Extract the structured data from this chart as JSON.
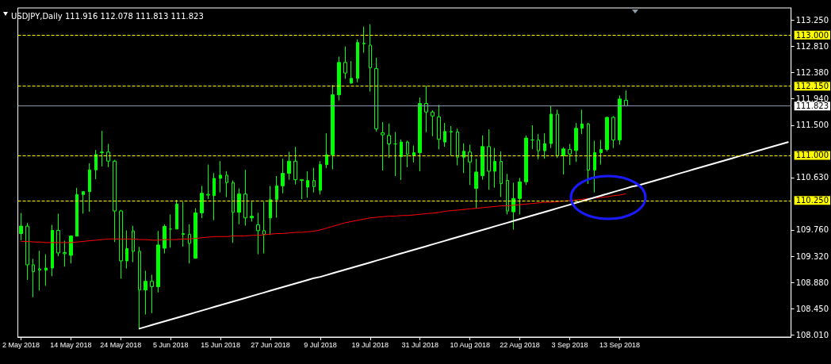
{
  "chart_data": {
    "type": "candlestick",
    "title": "USDJPY,Daily 111.916 112.078 111.813 111.823",
    "color": "#00ff00",
    "categories": [
      "2 May 2018",
      null,
      null,
      null,
      null,
      null,
      null,
      null,
      "14 May 2018",
      null,
      null,
      null,
      null,
      null,
      null,
      null,
      "24 May 2018",
      null,
      null,
      null,
      null,
      null,
      null,
      null,
      "5 Jun 2018",
      null,
      null,
      null,
      null,
      null,
      null,
      null,
      "15 Jun 2018",
      null,
      null,
      null,
      null,
      null,
      null,
      null,
      "27 Jun 2018",
      null,
      null,
      null,
      null,
      null,
      null,
      null,
      "9 Jul 2018",
      null,
      null,
      null,
      null,
      null,
      null,
      null,
      "19 Jul 2018",
      null,
      null,
      null,
      null,
      null,
      null,
      null,
      "31 Jul 2018",
      null,
      null,
      null,
      null,
      null,
      null,
      null,
      "10 Aug 2018",
      null,
      null,
      null,
      null,
      null,
      null,
      null,
      "22 Aug 2018",
      null,
      null,
      null,
      null,
      null,
      null,
      null,
      "3 Sep 2018",
      null,
      null,
      null,
      null,
      null,
      null,
      null,
      "13 Sep 2018",
      null,
      null,
      null,
      null,
      null,
      null,
      null,
      null,
      null,
      null,
      null,
      null,
      null,
      null,
      null,
      null,
      null,
      null,
      null,
      null,
      null,
      null,
      null,
      null,
      null,
      null,
      null
    ],
    "ohlc": [
      [
        109.7,
        110.04,
        109.59,
        109.824
      ],
      [
        109.824,
        109.876,
        108.928,
        109.18
      ],
      [
        109.18,
        109.281,
        108.641,
        109.069
      ],
      [
        109.113,
        109.413,
        108.752,
        109.091
      ],
      [
        109.091,
        109.356,
        108.831,
        109.127
      ],
      [
        109.127,
        109.846,
        108.99,
        109.753
      ],
      [
        109.753,
        110.031,
        109.325,
        109.378
      ],
      [
        109.383,
        109.581,
        109.149,
        109.365
      ],
      [
        109.338,
        109.669,
        109.202,
        109.66
      ],
      [
        109.656,
        110.459,
        109.656,
        110.348
      ],
      [
        110.348,
        110.406,
        110.031,
        110.397
      ],
      [
        110.397,
        110.869,
        110.062,
        110.759
      ],
      [
        110.759,
        111.089,
        110.604,
        111.014
      ],
      [
        111.045,
        111.407,
        110.816,
        111.054
      ],
      [
        111.054,
        111.191,
        110.803,
        110.904
      ],
      [
        110.904,
        110.926,
        109.559,
        110.075
      ],
      [
        110.075,
        110.093,
        108.95,
        109.246
      ],
      [
        109.246,
        109.753,
        109.118,
        109.449
      ],
      [
        109.744,
        109.828,
        109.224,
        109.405
      ],
      [
        109.405,
        109.48,
        108.112,
        108.761
      ],
      [
        108.761,
        109.083,
        108.355,
        108.906
      ],
      [
        108.906,
        109.016,
        108.377,
        108.818
      ],
      [
        108.818,
        109.744,
        108.721,
        109.51
      ],
      [
        109.457,
        109.854,
        109.369,
        109.819
      ],
      [
        109.775,
        110.018,
        109.466,
        109.775
      ],
      [
        109.775,
        110.26,
        109.775,
        110.19
      ],
      [
        109.7,
        110.229,
        109.48,
        109.687
      ],
      [
        109.687,
        109.854,
        109.202,
        109.537
      ],
      [
        109.29,
        110.119,
        109.281,
        110.044
      ],
      [
        110.044,
        110.494,
        109.956,
        110.37
      ],
      [
        110.353,
        110.847,
        110.273,
        110.34
      ],
      [
        110.331,
        110.706,
        109.921,
        110.617
      ],
      [
        110.617,
        110.904,
        110.384,
        110.67
      ],
      [
        110.67,
        110.737,
        110.304,
        110.547
      ],
      [
        110.547,
        110.582,
        109.546,
        110.053
      ],
      [
        110.053,
        110.45,
        109.854,
        110.357
      ],
      [
        110.357,
        110.759,
        109.832,
        109.96
      ],
      [
        109.96,
        110.229,
        109.899,
        109.987
      ],
      [
        109.846,
        110.044,
        109.356,
        109.748
      ],
      [
        109.748,
        110.229,
        109.369,
        109.687
      ],
      [
        109.96,
        110.493,
        109.677,
        110.264
      ],
      [
        110.264,
        110.656,
        109.964,
        110.493
      ],
      [
        110.493,
        110.943,
        110.37,
        110.7
      ],
      [
        110.7,
        111.058,
        110.595,
        110.903
      ],
      [
        110.903,
        111.141,
        110.515,
        110.595
      ],
      [
        110.595,
        110.595,
        110.273,
        110.581
      ],
      [
        110.471,
        110.736,
        110.295,
        110.581
      ],
      [
        110.581,
        110.793,
        110.383,
        110.48
      ],
      [
        110.418,
        110.903,
        110.347,
        110.846
      ],
      [
        110.846,
        111.366,
        110.789,
        111.009
      ],
      [
        111.009,
        112.169,
        110.767,
        112.006
      ],
      [
        112.006,
        112.641,
        111.913,
        112.544
      ],
      [
        112.544,
        112.809,
        112.271,
        112.368
      ],
      [
        112.2,
        112.566,
        112.191,
        112.279
      ],
      [
        112.279,
        112.928,
        112.213,
        112.875
      ],
      [
        112.862,
        113.14,
        112.707,
        112.853
      ],
      [
        112.831,
        113.179,
        112.059,
        112.456
      ],
      [
        112.443,
        112.623,
        111.397,
        111.441
      ],
      [
        111.375,
        111.552,
        110.749,
        111.34
      ],
      [
        111.331,
        111.53,
        110.956,
        111.19
      ],
      [
        111.19,
        111.389,
        110.656,
        111.19
      ],
      [
        110.978,
        111.265,
        110.59,
        111.221
      ],
      [
        111.221,
        111.243,
        110.802,
        111.02
      ],
      [
        110.992,
        111.164,
        110.881,
        111.045
      ],
      [
        111.045,
        111.962,
        110.736,
        111.861
      ],
      [
        111.861,
        112.156,
        111.384,
        111.72
      ],
      [
        111.72,
        111.75,
        111.318,
        111.654
      ],
      [
        111.64,
        111.839,
        111.098,
        111.265
      ],
      [
        111.221,
        111.539,
        111.142,
        111.397
      ],
      [
        111.397,
        111.486,
        110.992,
        111.389
      ],
      [
        111.389,
        111.442,
        110.833,
        110.97
      ],
      [
        110.97,
        111.199,
        110.705,
        111.067
      ],
      [
        111.054,
        111.177,
        110.507,
        110.89
      ],
      [
        110.449,
        110.943,
        110.119,
        110.723
      ],
      [
        110.661,
        111.331,
        110.595,
        111.146
      ],
      [
        111.146,
        111.433,
        110.427,
        110.736
      ],
      [
        110.736,
        111.124,
        110.463,
        110.899
      ],
      [
        110.899,
        111.067,
        110.308,
        110.529
      ],
      [
        110.582,
        110.692,
        110.017,
        110.074
      ],
      [
        110.061,
        110.546,
        109.765,
        110.282
      ],
      [
        110.282,
        110.626,
        110.017,
        110.56
      ],
      [
        110.56,
        111.331,
        110.507,
        111.287
      ],
      [
        111.256,
        111.499,
        111.102,
        111.256
      ],
      [
        111.256,
        111.353,
        110.934,
        111.076
      ],
      [
        111.076,
        111.367,
        110.943,
        111.195
      ],
      [
        111.195,
        111.83,
        111.12,
        111.684
      ],
      [
        111.684,
        111.759,
        110.956,
        110.992
      ],
      [
        110.992,
        111.133,
        110.683,
        111.106
      ],
      [
        111.098,
        111.19,
        110.837,
        111.023
      ],
      [
        111.08,
        111.539,
        110.89,
        111.45
      ],
      [
        111.45,
        111.759,
        111.353,
        111.521
      ],
      [
        111.521,
        111.539,
        110.524,
        110.754
      ],
      [
        110.754,
        111.243,
        110.383,
        111.045
      ],
      [
        111.045,
        111.256,
        110.846,
        111.098
      ],
      [
        111.098,
        111.64,
        111.067,
        111.631
      ],
      [
        111.631,
        111.653,
        111.12,
        111.256
      ],
      [
        111.256,
        111.993,
        111.177,
        111.936
      ],
      [
        111.916,
        112.078,
        111.813,
        111.823
      ],
      null,
      null,
      null,
      null,
      null,
      null,
      null,
      null,
      null,
      null,
      null,
      null,
      null,
      null,
      null,
      null,
      null,
      null,
      null,
      null,
      null,
      null,
      null,
      null,
      null,
      null
    ],
    "series": [
      {
        "type": "line",
        "color": "#ff0000",
        "values": [
          109.57,
          109.57,
          109.56,
          109.56,
          109.55,
          109.55,
          109.55,
          109.55,
          109.55,
          109.56,
          109.57,
          109.58,
          109.59,
          109.6,
          109.61,
          109.61,
          109.61,
          109.61,
          109.61,
          109.6,
          109.6,
          109.59,
          109.59,
          109.6,
          109.6,
          109.6,
          109.61,
          109.61,
          109.62,
          109.63,
          109.64,
          109.65,
          109.65,
          109.65,
          109.66,
          109.66,
          109.66,
          109.67,
          109.67,
          109.68,
          109.69,
          109.7,
          109.7,
          109.71,
          109.72,
          109.72,
          109.73,
          109.74,
          109.76,
          109.79,
          109.82,
          109.85,
          109.88,
          109.9,
          109.92,
          109.94,
          109.96,
          109.97,
          109.98,
          109.99,
          109.99,
          110.0,
          110.0,
          110.01,
          110.02,
          110.03,
          110.04,
          110.05,
          110.07,
          110.08,
          110.09,
          110.1,
          110.11,
          110.12,
          110.13,
          110.14,
          110.15,
          110.16,
          110.16,
          110.17,
          110.18,
          110.19,
          110.2,
          110.21,
          110.22,
          110.22,
          110.23,
          110.24,
          110.25,
          110.26,
          110.27,
          110.28,
          110.29,
          110.3,
          110.31,
          110.33,
          110.34,
          110.36,
          null,
          null,
          null,
          null,
          null,
          null,
          null,
          null,
          null,
          null,
          null,
          null,
          null,
          null,
          null,
          null,
          null,
          null,
          null,
          null,
          null,
          null,
          null,
          null,
          null,
          null
        ]
      },
      {
        "type": "line",
        "color": "#ffffff",
        "values": [
          null,
          null,
          null,
          null,
          null,
          null,
          null,
          null,
          null,
          null,
          null,
          null,
          null,
          null,
          null,
          null,
          null,
          null,
          null,
          108.12,
          108.15,
          108.18,
          108.21,
          108.24,
          108.27,
          108.3,
          108.33,
          108.36,
          108.39,
          108.42,
          108.45,
          108.48,
          108.51,
          108.54,
          108.57,
          108.6,
          108.63,
          108.66,
          108.69,
          108.72,
          108.75,
          108.78,
          108.81,
          108.84,
          108.87,
          108.9,
          108.93,
          108.96,
          108.98,
          109.01,
          109.04,
          109.07,
          109.1,
          109.13,
          109.16,
          109.19,
          109.22,
          109.25,
          109.28,
          109.31,
          109.34,
          109.37,
          109.4,
          109.43,
          109.46,
          109.49,
          109.52,
          109.55,
          109.58,
          109.61,
          109.64,
          109.67,
          109.7,
          109.73,
          109.76,
          109.79,
          109.82,
          109.85,
          109.88,
          109.91,
          109.94,
          109.97,
          110.0,
          110.03,
          110.06,
          110.09,
          110.12,
          110.15,
          110.18,
          110.21,
          110.24,
          110.27,
          110.3,
          110.33,
          110.36,
          110.39,
          110.42,
          110.45,
          110.48,
          110.5,
          110.53,
          110.56,
          110.59,
          110.62,
          110.65,
          110.68,
          110.71,
          110.74,
          110.77,
          110.8,
          110.83,
          110.86,
          110.89,
          110.92,
          110.95,
          110.98,
          111.01,
          111.04,
          111.07,
          111.1,
          111.13,
          111.16,
          111.19,
          111.22
        ]
      }
    ],
    "ylim": [
      107.98,
      113.45
    ],
    "yticks": [
      {
        "value": 108.01,
        "label": "108.010"
      },
      {
        "value": 108.45,
        "label": "108.450"
      },
      {
        "value": 108.88,
        "label": "108.880"
      },
      {
        "value": 109.32,
        "label": "109.320"
      },
      {
        "value": 109.76,
        "label": "109.760"
      },
      {
        "value": 110.63,
        "label": "110.630"
      },
      {
        "value": 111.5,
        "label": "111.500"
      },
      {
        "value": 111.94,
        "label": "111.940"
      },
      {
        "value": 112.38,
        "label": "112.380"
      },
      {
        "value": 112.81,
        "label": "112.810"
      },
      {
        "value": 113.25,
        "label": "113.250"
      }
    ],
    "ref_lines": [
      {
        "axis": "y",
        "value": 113.0,
        "label": "113.000",
        "color": "#ffff00",
        "line_style": "dashed"
      },
      {
        "axis": "y",
        "value": 112.15,
        "label": "112.150",
        "color": "#ffff00",
        "line_style": "dashed"
      },
      {
        "axis": "y",
        "value": 111.823,
        "label": "111.823",
        "color": "#8796a8",
        "line_style": "solid"
      },
      {
        "axis": "y",
        "value": 111.0,
        "label": "111.000",
        "color": "#ffff00",
        "line_style": "dashed"
      },
      {
        "axis": "y",
        "value": 110.25,
        "label": "110.250",
        "color": "#ffff00",
        "line_style": "dashed"
      }
    ],
    "grid": false
  }
}
